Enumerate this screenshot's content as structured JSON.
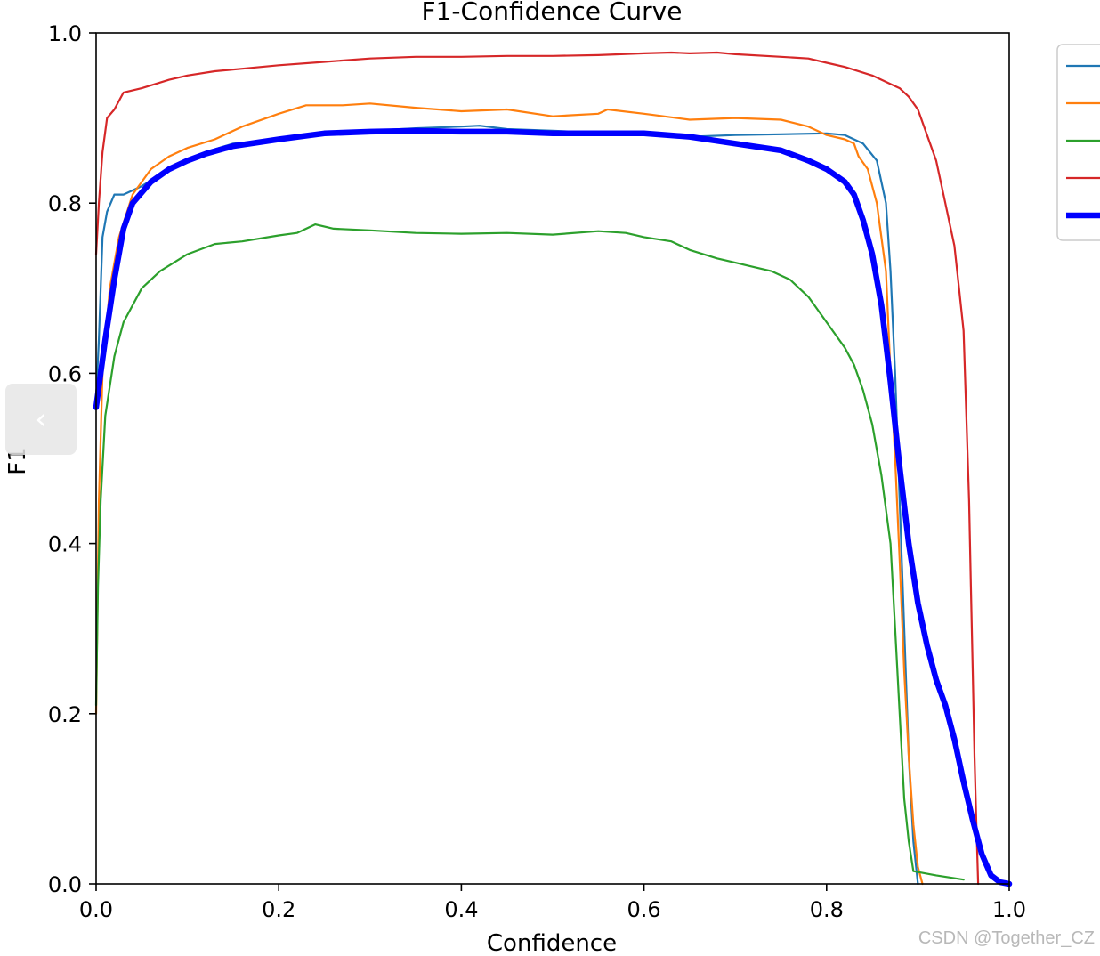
{
  "chart_data": {
    "type": "line",
    "title": "F1-Confidence Curve",
    "xlabel": "Confidence",
    "ylabel": "F1",
    "xlim": [
      0.0,
      1.0
    ],
    "ylim": [
      0.0,
      1.0
    ],
    "xticks": [
      "0.0",
      "0.2",
      "0.4",
      "0.6",
      "0.8",
      "1.0"
    ],
    "yticks": [
      "0.0",
      "0.2",
      "0.4",
      "0.6",
      "0.8",
      "1.0"
    ],
    "grid": false,
    "legend": "right (clipped)",
    "series": [
      {
        "color": "#1f77b4",
        "width": 2.2,
        "points": [
          [
            0.0,
            0.57
          ],
          [
            0.003,
            0.64
          ],
          [
            0.007,
            0.76
          ],
          [
            0.012,
            0.79
          ],
          [
            0.02,
            0.81
          ],
          [
            0.03,
            0.81
          ],
          [
            0.05,
            0.82
          ],
          [
            0.08,
            0.84
          ],
          [
            0.1,
            0.85
          ],
          [
            0.12,
            0.86
          ],
          [
            0.15,
            0.87
          ],
          [
            0.2,
            0.875
          ],
          [
            0.25,
            0.88
          ],
          [
            0.3,
            0.885
          ],
          [
            0.35,
            0.888
          ],
          [
            0.4,
            0.89
          ],
          [
            0.42,
            0.891
          ],
          [
            0.45,
            0.887
          ],
          [
            0.5,
            0.885
          ],
          [
            0.55,
            0.883
          ],
          [
            0.6,
            0.882
          ],
          [
            0.65,
            0.878
          ],
          [
            0.7,
            0.88
          ],
          [
            0.75,
            0.881
          ],
          [
            0.8,
            0.882
          ],
          [
            0.82,
            0.88
          ],
          [
            0.84,
            0.87
          ],
          [
            0.855,
            0.85
          ],
          [
            0.865,
            0.8
          ],
          [
            0.87,
            0.72
          ],
          [
            0.875,
            0.6
          ],
          [
            0.88,
            0.45
          ],
          [
            0.885,
            0.3
          ],
          [
            0.89,
            0.15
          ],
          [
            0.895,
            0.05
          ],
          [
            0.9,
            0.0
          ]
        ]
      },
      {
        "color": "#ff7f0e",
        "width": 2.2,
        "points": [
          [
            0.0,
            0.2
          ],
          [
            0.003,
            0.45
          ],
          [
            0.007,
            0.6
          ],
          [
            0.015,
            0.7
          ],
          [
            0.025,
            0.76
          ],
          [
            0.04,
            0.81
          ],
          [
            0.06,
            0.84
          ],
          [
            0.08,
            0.855
          ],
          [
            0.1,
            0.865
          ],
          [
            0.13,
            0.875
          ],
          [
            0.16,
            0.89
          ],
          [
            0.2,
            0.905
          ],
          [
            0.23,
            0.915
          ],
          [
            0.27,
            0.915
          ],
          [
            0.3,
            0.917
          ],
          [
            0.35,
            0.912
          ],
          [
            0.4,
            0.908
          ],
          [
            0.45,
            0.91
          ],
          [
            0.5,
            0.902
          ],
          [
            0.55,
            0.905
          ],
          [
            0.56,
            0.91
          ],
          [
            0.6,
            0.905
          ],
          [
            0.65,
            0.898
          ],
          [
            0.7,
            0.9
          ],
          [
            0.75,
            0.898
          ],
          [
            0.78,
            0.89
          ],
          [
            0.8,
            0.88
          ],
          [
            0.82,
            0.875
          ],
          [
            0.83,
            0.87
          ],
          [
            0.835,
            0.855
          ],
          [
            0.845,
            0.84
          ],
          [
            0.855,
            0.8
          ],
          [
            0.865,
            0.72
          ],
          [
            0.87,
            0.6
          ],
          [
            0.875,
            0.5
          ],
          [
            0.88,
            0.38
          ],
          [
            0.885,
            0.25
          ],
          [
            0.89,
            0.15
          ],
          [
            0.895,
            0.07
          ],
          [
            0.9,
            0.02
          ],
          [
            0.905,
            0.0
          ]
        ]
      },
      {
        "color": "#2ca02c",
        "width": 2.2,
        "points": [
          [
            0.0,
            0.21
          ],
          [
            0.002,
            0.35
          ],
          [
            0.005,
            0.45
          ],
          [
            0.01,
            0.55
          ],
          [
            0.02,
            0.62
          ],
          [
            0.03,
            0.66
          ],
          [
            0.05,
            0.7
          ],
          [
            0.07,
            0.72
          ],
          [
            0.1,
            0.74
          ],
          [
            0.13,
            0.752
          ],
          [
            0.16,
            0.755
          ],
          [
            0.2,
            0.762
          ],
          [
            0.22,
            0.765
          ],
          [
            0.24,
            0.775
          ],
          [
            0.26,
            0.77
          ],
          [
            0.3,
            0.768
          ],
          [
            0.35,
            0.765
          ],
          [
            0.4,
            0.764
          ],
          [
            0.45,
            0.765
          ],
          [
            0.5,
            0.763
          ],
          [
            0.55,
            0.767
          ],
          [
            0.58,
            0.765
          ],
          [
            0.6,
            0.76
          ],
          [
            0.63,
            0.755
          ],
          [
            0.65,
            0.745
          ],
          [
            0.68,
            0.735
          ],
          [
            0.7,
            0.73
          ],
          [
            0.72,
            0.725
          ],
          [
            0.74,
            0.72
          ],
          [
            0.76,
            0.71
          ],
          [
            0.78,
            0.69
          ],
          [
            0.8,
            0.66
          ],
          [
            0.82,
            0.63
          ],
          [
            0.83,
            0.61
          ],
          [
            0.84,
            0.58
          ],
          [
            0.85,
            0.54
          ],
          [
            0.86,
            0.48
          ],
          [
            0.87,
            0.4
          ],
          [
            0.875,
            0.3
          ],
          [
            0.88,
            0.2
          ],
          [
            0.885,
            0.1
          ],
          [
            0.89,
            0.05
          ],
          [
            0.895,
            0.015
          ],
          [
            0.92,
            0.01
          ],
          [
            0.95,
            0.005
          ]
        ]
      },
      {
        "color": "#d62728",
        "width": 2.2,
        "points": [
          [
            0.0,
            0.74
          ],
          [
            0.003,
            0.8
          ],
          [
            0.007,
            0.86
          ],
          [
            0.012,
            0.9
          ],
          [
            0.02,
            0.91
          ],
          [
            0.03,
            0.93
          ],
          [
            0.05,
            0.935
          ],
          [
            0.08,
            0.945
          ],
          [
            0.1,
            0.95
          ],
          [
            0.13,
            0.955
          ],
          [
            0.16,
            0.958
          ],
          [
            0.2,
            0.962
          ],
          [
            0.25,
            0.966
          ],
          [
            0.3,
            0.97
          ],
          [
            0.35,
            0.972
          ],
          [
            0.4,
            0.972
          ],
          [
            0.45,
            0.973
          ],
          [
            0.5,
            0.973
          ],
          [
            0.55,
            0.974
          ],
          [
            0.6,
            0.976
          ],
          [
            0.63,
            0.977
          ],
          [
            0.65,
            0.976
          ],
          [
            0.68,
            0.977
          ],
          [
            0.7,
            0.975
          ],
          [
            0.75,
            0.972
          ],
          [
            0.78,
            0.97
          ],
          [
            0.8,
            0.965
          ],
          [
            0.82,
            0.96
          ],
          [
            0.85,
            0.95
          ],
          [
            0.87,
            0.94
          ],
          [
            0.88,
            0.935
          ],
          [
            0.89,
            0.925
          ],
          [
            0.9,
            0.91
          ],
          [
            0.91,
            0.88
          ],
          [
            0.92,
            0.85
          ],
          [
            0.93,
            0.8
          ],
          [
            0.94,
            0.75
          ],
          [
            0.945,
            0.7
          ],
          [
            0.95,
            0.65
          ],
          [
            0.953,
            0.55
          ],
          [
            0.956,
            0.45
          ],
          [
            0.958,
            0.35
          ],
          [
            0.96,
            0.25
          ],
          [
            0.962,
            0.15
          ],
          [
            0.964,
            0.07
          ],
          [
            0.966,
            0.0
          ]
        ]
      },
      {
        "color": "#0000ff",
        "width": 6.5,
        "points": [
          [
            0.0,
            0.56
          ],
          [
            0.005,
            0.6
          ],
          [
            0.01,
            0.64
          ],
          [
            0.02,
            0.71
          ],
          [
            0.03,
            0.77
          ],
          [
            0.04,
            0.8
          ],
          [
            0.06,
            0.825
          ],
          [
            0.08,
            0.84
          ],
          [
            0.1,
            0.85
          ],
          [
            0.12,
            0.858
          ],
          [
            0.15,
            0.867
          ],
          [
            0.2,
            0.875
          ],
          [
            0.25,
            0.882
          ],
          [
            0.3,
            0.884
          ],
          [
            0.35,
            0.885
          ],
          [
            0.4,
            0.884
          ],
          [
            0.45,
            0.884
          ],
          [
            0.5,
            0.882
          ],
          [
            0.55,
            0.882
          ],
          [
            0.6,
            0.882
          ],
          [
            0.65,
            0.878
          ],
          [
            0.7,
            0.87
          ],
          [
            0.75,
            0.862
          ],
          [
            0.78,
            0.85
          ],
          [
            0.8,
            0.84
          ],
          [
            0.82,
            0.825
          ],
          [
            0.83,
            0.81
          ],
          [
            0.84,
            0.78
          ],
          [
            0.85,
            0.74
          ],
          [
            0.86,
            0.68
          ],
          [
            0.87,
            0.59
          ],
          [
            0.88,
            0.49
          ],
          [
            0.89,
            0.4
          ],
          [
            0.9,
            0.33
          ],
          [
            0.91,
            0.28
          ],
          [
            0.92,
            0.24
          ],
          [
            0.93,
            0.21
          ],
          [
            0.94,
            0.17
          ],
          [
            0.95,
            0.12
          ],
          [
            0.96,
            0.075
          ],
          [
            0.97,
            0.035
          ],
          [
            0.98,
            0.01
          ],
          [
            0.99,
            0.002
          ],
          [
            1.0,
            0.0
          ]
        ]
      }
    ]
  },
  "nav": {
    "back_glyph": "‹"
  },
  "watermark": "CSDN @Together_CZ"
}
